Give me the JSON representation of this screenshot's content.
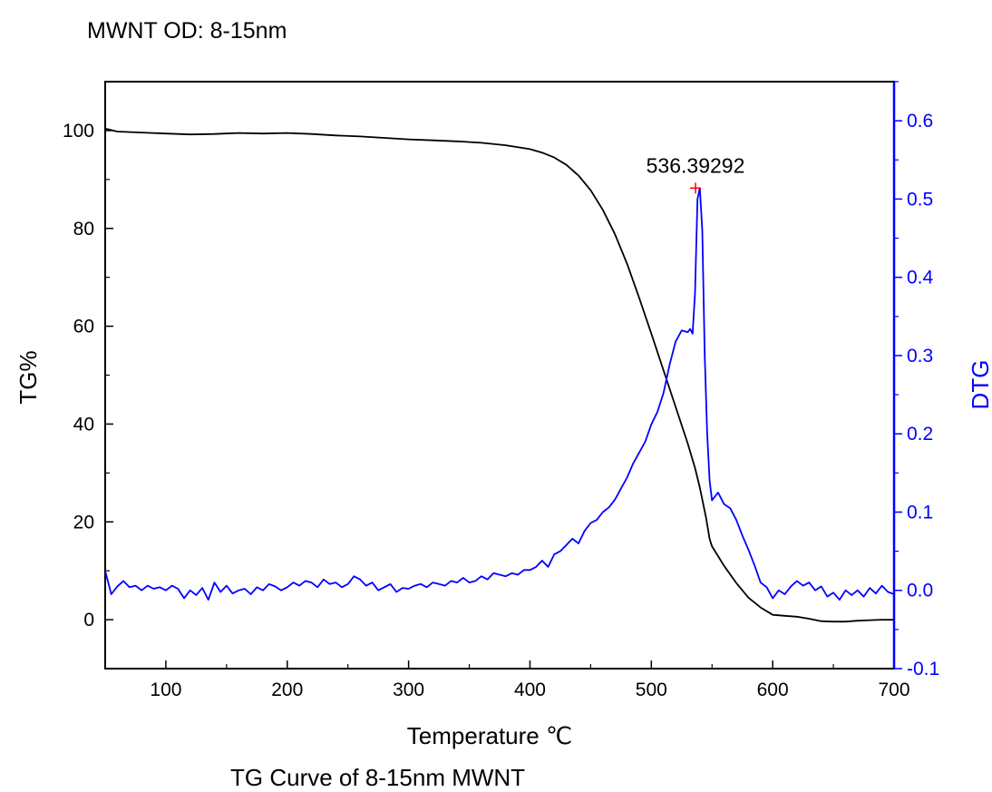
{
  "header": {
    "text": "MWNT OD: 8-15nm"
  },
  "caption": {
    "text": "TG Curve of 8-15nm MWNT"
  },
  "colors": {
    "tg": "#000000",
    "dtg": "#0000ff",
    "marker": "#ff0000",
    "axis": "#000000"
  },
  "chart_data": {
    "type": "line",
    "title": "",
    "xlabel": "Temperature ℃",
    "ylabel": "TG%",
    "y2label": "DTG",
    "xlim": [
      50,
      700
    ],
    "ylim": [
      -10,
      110
    ],
    "y2lim": [
      -0.1,
      0.65
    ],
    "x_ticks": [
      "100",
      "200",
      "300",
      "400",
      "500",
      "600",
      "700"
    ],
    "y_ticks": [
      "0",
      "20",
      "40",
      "60",
      "80",
      "100"
    ],
    "y2_ticks": [
      "-0.1",
      "0.0",
      "0.1",
      "0.2",
      "0.3",
      "0.4",
      "0.5",
      "0.6"
    ],
    "grid": false,
    "series": [
      {
        "axis": "left",
        "x": [
          50,
          60,
          80,
          100,
          120,
          140,
          160,
          180,
          200,
          220,
          240,
          260,
          280,
          300,
          320,
          340,
          360,
          380,
          400,
          410,
          420,
          430,
          440,
          450,
          460,
          470,
          480,
          490,
          500,
          510,
          520,
          530,
          536,
          540,
          545,
          548,
          550,
          555,
          560,
          570,
          580,
          590,
          600,
          610,
          620,
          630,
          640,
          650,
          660,
          670,
          680,
          690,
          700
        ],
        "values": [
          100.4,
          99.8,
          99.6,
          99.4,
          99.2,
          99.3,
          99.5,
          99.4,
          99.5,
          99.3,
          99.0,
          98.8,
          98.5,
          98.2,
          98.0,
          97.8,
          97.5,
          97.0,
          96.2,
          95.5,
          94.5,
          93.0,
          90.8,
          87.8,
          83.8,
          78.8,
          72.8,
          65.8,
          58.5,
          51.0,
          43.5,
          36.0,
          31.0,
          27.0,
          21.0,
          16.5,
          15.0,
          13.0,
          11.0,
          7.5,
          4.5,
          2.5,
          1.0,
          0.8,
          0.6,
          0.2,
          -0.3,
          -0.4,
          -0.4,
          -0.2,
          -0.1,
          0.0,
          0.0
        ]
      },
      {
        "axis": "right",
        "x": [
          50,
          55,
          60,
          65,
          70,
          75,
          80,
          85,
          90,
          95,
          100,
          105,
          110,
          115,
          120,
          125,
          130,
          135,
          140,
          145,
          150,
          155,
          160,
          165,
          170,
          175,
          180,
          185,
          190,
          195,
          200,
          205,
          210,
          215,
          220,
          225,
          230,
          235,
          240,
          245,
          250,
          255,
          260,
          265,
          270,
          275,
          280,
          285,
          290,
          295,
          300,
          305,
          310,
          315,
          320,
          325,
          330,
          335,
          340,
          345,
          350,
          355,
          360,
          365,
          370,
          375,
          380,
          385,
          390,
          395,
          400,
          405,
          410,
          415,
          420,
          425,
          430,
          435,
          440,
          445,
          450,
          455,
          460,
          465,
          470,
          475,
          480,
          485,
          490,
          495,
          500,
          505,
          510,
          515,
          520,
          525,
          530,
          532,
          534,
          536,
          538,
          540,
          542,
          544,
          546,
          548,
          550,
          555,
          560,
          565,
          570,
          575,
          580,
          585,
          590,
          595,
          600,
          605,
          610,
          615,
          620,
          625,
          630,
          635,
          640,
          645,
          650,
          655,
          660,
          665,
          670,
          675,
          680,
          685,
          690,
          695,
          700
        ],
        "values": [
          0.025,
          -0.005,
          0.005,
          0.012,
          0.004,
          0.006,
          0.0,
          0.006,
          0.002,
          0.004,
          0.0,
          0.006,
          0.002,
          -0.01,
          0.0,
          -0.006,
          0.003,
          -0.012,
          0.01,
          -0.002,
          0.006,
          -0.004,
          0.0,
          0.002,
          -0.005,
          0.004,
          0.0,
          0.008,
          0.005,
          0.0,
          0.004,
          0.01,
          0.006,
          0.012,
          0.01,
          0.004,
          0.014,
          0.008,
          0.01,
          0.004,
          0.008,
          0.018,
          0.014,
          0.006,
          0.01,
          0.0,
          0.004,
          0.008,
          -0.002,
          0.003,
          0.002,
          0.006,
          0.008,
          0.004,
          0.01,
          0.008,
          0.006,
          0.012,
          0.01,
          0.016,
          0.01,
          0.012,
          0.018,
          0.014,
          0.022,
          0.02,
          0.018,
          0.022,
          0.02,
          0.026,
          0.026,
          0.03,
          0.038,
          0.03,
          0.046,
          0.05,
          0.058,
          0.066,
          0.06,
          0.076,
          0.086,
          0.09,
          0.1,
          0.106,
          0.116,
          0.13,
          0.144,
          0.162,
          0.176,
          0.19,
          0.212,
          0.228,
          0.252,
          0.288,
          0.318,
          0.332,
          0.33,
          0.334,
          0.328,
          0.38,
          0.5,
          0.514,
          0.46,
          0.3,
          0.2,
          0.14,
          0.115,
          0.125,
          0.11,
          0.105,
          0.09,
          0.07,
          0.052,
          0.032,
          0.01,
          0.004,
          -0.01,
          0.0,
          -0.005,
          0.005,
          0.012,
          0.006,
          0.01,
          0.0,
          0.005,
          -0.008,
          -0.003,
          -0.012,
          0.0,
          -0.006,
          0.0,
          -0.008,
          0.003,
          -0.004,
          0.006,
          -0.002,
          -0.005
        ]
      }
    ],
    "annotations": [
      {
        "text": "536.39292",
        "x": 536.39292,
        "y2": 0.514
      }
    ]
  }
}
